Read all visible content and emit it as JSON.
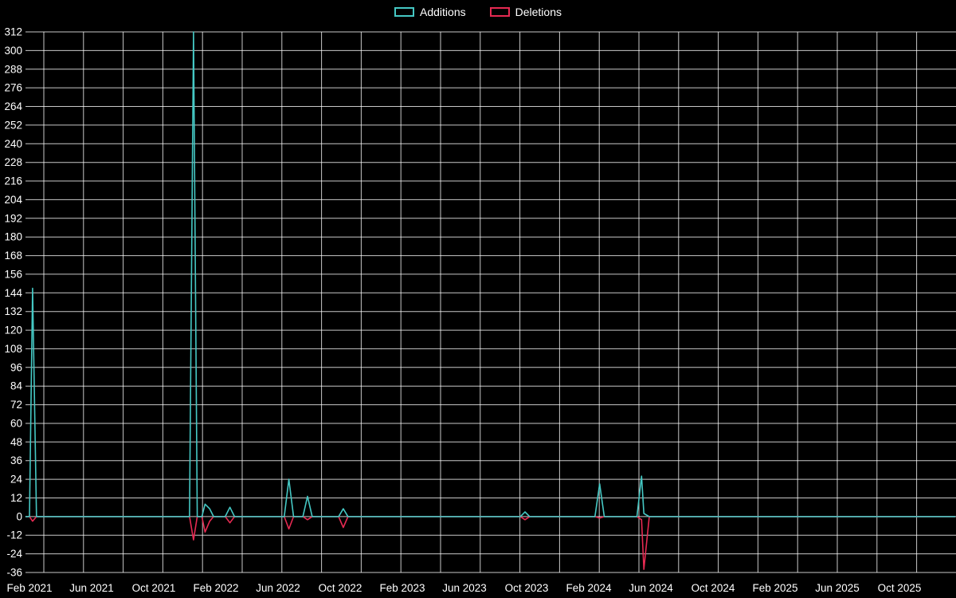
{
  "chart_data": {
    "type": "line",
    "background_color": "#000000",
    "grid_color": "rgba(255,255,255,0.78)",
    "text_color": "#ffffff",
    "legend_position": "top-center",
    "legend": [
      {
        "label": "Additions",
        "color": "#45c8c4"
      },
      {
        "label": "Deletions",
        "color": "#e62a52"
      }
    ],
    "ylim": [
      -36,
      312
    ],
    "y_ticks": [
      312,
      300,
      288,
      276,
      264,
      252,
      240,
      228,
      216,
      204,
      192,
      180,
      168,
      156,
      144,
      132,
      120,
      108,
      96,
      84,
      72,
      60,
      48,
      36,
      24,
      12,
      0,
      -12,
      -24,
      -36
    ],
    "x_tick_labels": [
      "Feb 2021",
      "Jun 2021",
      "Oct 2021",
      "Feb 2022",
      "Jun 2022",
      "Oct 2022",
      "Feb 2023",
      "Jun 2023",
      "Oct 2023",
      "Feb 2024",
      "Jun 2024",
      "Oct 2024",
      "Feb 2025",
      "Jun 2025",
      "Oct 2025"
    ],
    "x_tick_months": [
      0,
      4,
      8,
      12,
      16,
      20,
      24,
      28,
      32,
      36,
      40,
      44,
      48,
      52,
      56
    ],
    "x_unit": "months since Feb 2021",
    "x_months": [
      -0.26,
      0.0,
      0.2,
      0.45,
      10.3,
      10.56,
      10.8,
      11.1,
      11.3,
      11.6,
      11.85,
      12.6,
      12.9,
      13.2,
      16.4,
      16.7,
      17.0,
      17.6,
      17.9,
      18.2,
      19.9,
      20.2,
      20.5,
      31.6,
      31.9,
      32.2,
      36.4,
      36.7,
      37.0,
      39.1,
      39.4,
      39.55,
      39.9,
      59.6
    ],
    "series": [
      {
        "name": "Additions",
        "color": "#45c8c4",
        "values": [
          0,
          0,
          147,
          0,
          0,
          312,
          0,
          0,
          8,
          5,
          0,
          0,
          6,
          0,
          0,
          24,
          0,
          0,
          13,
          0,
          0,
          5,
          0,
          0,
          3,
          0,
          0,
          21,
          0,
          0,
          26,
          2,
          0,
          0
        ]
      },
      {
        "name": "Deletions",
        "color": "#e62a52",
        "values": [
          0,
          0,
          -3,
          0,
          0,
          -15,
          0,
          0,
          -10,
          -3,
          0,
          0,
          -4,
          0,
          0,
          -8,
          0,
          0,
          -2,
          0,
          0,
          -7,
          0,
          0,
          -2,
          0,
          0,
          -1,
          0,
          0,
          -2,
          -34,
          0,
          0
        ]
      }
    ]
  }
}
